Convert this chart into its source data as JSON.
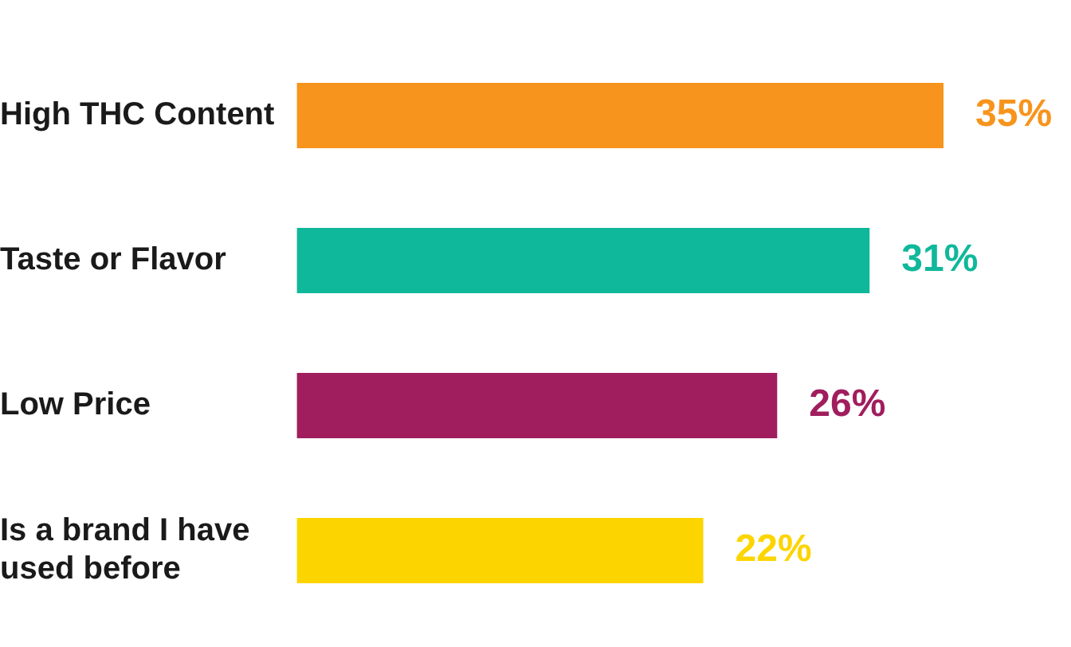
{
  "chart_data": {
    "type": "bar",
    "orientation": "horizontal",
    "categories": [
      "High THC Content",
      "Taste or Flavor",
      "Low Price",
      "Is a brand I have used before"
    ],
    "values": [
      35,
      31,
      26,
      22
    ],
    "colors": [
      "#f7941d",
      "#10b89b",
      "#a01e5e",
      "#fcd500"
    ],
    "data_labels": true,
    "value_labels": [
      "35%",
      "31%",
      "26%",
      "22%"
    ]
  }
}
